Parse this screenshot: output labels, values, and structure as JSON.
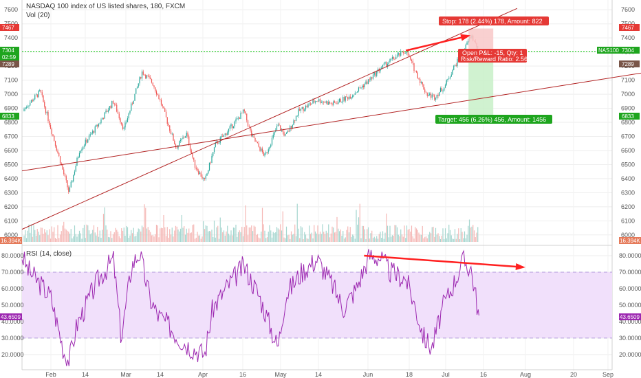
{
  "header": {
    "title": "NASDAQ 100 index of US listed shares, 180, FXCM",
    "volume_label": "Vol (20)"
  },
  "rsi_header": {
    "label": "RSI (14, close)"
  },
  "colors": {
    "up": "#26a69a",
    "down": "#ef5350",
    "up_vol": "#a5d6cf",
    "down_vol": "#f5b7b5",
    "trend": "#b22222",
    "rsi_line": "#9c27b0",
    "rsi_band": "#f1e0fb",
    "current_price": "#00e600",
    "stop_zone": "#f8c8c8",
    "target_zone": "#c8f0c8",
    "annotation": "#ff2020"
  },
  "position": {
    "stop_label": "Stop: 178 (2.44%) 178, Amount: 822",
    "target_label": "Target: 456 (6.26%) 456, Amount: 1456",
    "pnl_label": "Open P&L: -15, Qty: 1",
    "rr_label": "Risk/Reward Ratio: 2.56",
    "entry": 7289,
    "stop": 7467,
    "target": 6833
  },
  "price_tags": {
    "stop": "7467",
    "current": "7304",
    "current_note": "02:59",
    "entry": "7289",
    "target": "6833",
    "symbol": "NAS100",
    "volume": "16.394K",
    "rsi": "43.6509"
  },
  "chart_data": [
    {
      "type": "candlestick",
      "title": "NASDAQ 100 index of US listed shares, 180, FXCM",
      "ylim": [
        5960,
        7650
      ],
      "y_ticks": [
        "6000",
        "6100",
        "6200",
        "6300",
        "6400",
        "6500",
        "6600",
        "6700",
        "6800",
        "6900",
        "7000",
        "7100",
        "7200",
        "7300",
        "7400",
        "7500",
        "7600"
      ],
      "x_ticks": [
        "Feb",
        "14",
        "Mar",
        "14",
        "Apr",
        "16",
        "May",
        "14",
        "Jun",
        "18",
        "Jul",
        "16",
        "Aug",
        "20",
        "Sep"
      ],
      "x_range": [
        "2018-01-22",
        "2018-09-05"
      ],
      "series": [
        {
          "name": "price",
          "x": [
            "2018-01-22",
            "2018-01-29",
            "2018-02-06",
            "2018-02-09",
            "2018-02-13",
            "2018-02-20",
            "2018-02-26",
            "2018-03-02",
            "2018-03-09",
            "2018-03-13",
            "2018-03-16",
            "2018-03-22",
            "2018-03-26",
            "2018-03-29",
            "2018-04-02",
            "2018-04-06",
            "2018-04-10",
            "2018-04-17",
            "2018-04-20",
            "2018-04-25",
            "2018-04-30",
            "2018-05-03",
            "2018-05-08",
            "2018-05-15",
            "2018-05-21",
            "2018-05-28",
            "2018-06-04",
            "2018-06-08",
            "2018-06-13",
            "2018-06-18",
            "2018-06-22",
            "2018-06-26",
            "2018-06-29",
            "2018-07-03",
            "2018-07-06",
            "2018-07-10",
            "2018-07-13",
            "2018-07-16"
          ],
          "y": [
            6880,
            7020,
            6500,
            6300,
            6600,
            6780,
            6950,
            6750,
            7160,
            7080,
            6950,
            6620,
            6720,
            6500,
            6380,
            6640,
            6720,
            6880,
            6700,
            6560,
            6780,
            6700,
            6880,
            6960,
            6930,
            6990,
            7100,
            7180,
            7250,
            7310,
            7150,
            7000,
            6980,
            7060,
            7180,
            7300,
            7420,
            7304
          ]
        }
      ]
    },
    {
      "type": "bar",
      "title": "Vol (20)",
      "last_value": "16.394K"
    },
    {
      "type": "line",
      "title": "RSI (14, close)",
      "ylim": [
        12,
        85
      ],
      "y_ticks": [
        "20.0000",
        "30.0000",
        "40.0000",
        "50.0000",
        "60.0000",
        "70.0000",
        "80.0000"
      ],
      "bands": [
        30,
        70
      ],
      "series": [
        {
          "name": "RSI (14, close)",
          "x": [
            "2018-01-22",
            "2018-01-24",
            "2018-02-02",
            "2018-02-07",
            "2018-02-09",
            "2018-02-12",
            "2018-02-20",
            "2018-02-26",
            "2018-03-01",
            "2018-03-05",
            "2018-03-08",
            "2018-03-12",
            "2018-03-15",
            "2018-03-19",
            "2018-03-23",
            "2018-03-28",
            "2018-04-02",
            "2018-04-05",
            "2018-04-11",
            "2018-04-17",
            "2018-04-23",
            "2018-04-30",
            "2018-05-03",
            "2018-05-09",
            "2018-05-15",
            "2018-05-21",
            "2018-05-25",
            "2018-05-30",
            "2018-06-04",
            "2018-06-08",
            "2018-06-12",
            "2018-06-18",
            "2018-06-21",
            "2018-06-25",
            "2018-06-28",
            "2018-07-02",
            "2018-07-06",
            "2018-07-10",
            "2018-07-13",
            "2018-07-16"
          ],
          "y": [
            80,
            72,
            55,
            22,
            16,
            38,
            65,
            78,
            30,
            74,
            82,
            54,
            44,
            38,
            30,
            24,
            20,
            48,
            62,
            74,
            55,
            24,
            56,
            70,
            78,
            62,
            48,
            60,
            80,
            79,
            70,
            66,
            52,
            30,
            24,
            48,
            62,
            77,
            72,
            43.65
          ]
        }
      ]
    }
  ]
}
